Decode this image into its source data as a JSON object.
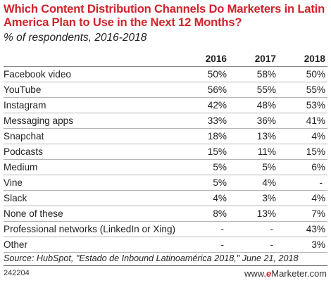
{
  "chart_data": {
    "type": "table",
    "title": "Which Content Distribution Channels Do Marketers in Latin America Plan to Use in the Next 12 Months?",
    "subtitle": "% of respondents, 2016-2018",
    "columns": [
      "2016",
      "2017",
      "2018"
    ],
    "rows": [
      {
        "label": "Facebook video",
        "values": [
          "50%",
          "58%",
          "50%"
        ]
      },
      {
        "label": "YouTube",
        "values": [
          "56%",
          "55%",
          "55%"
        ]
      },
      {
        "label": "Instagram",
        "values": [
          "42%",
          "48%",
          "53%"
        ]
      },
      {
        "label": "Messaging apps",
        "values": [
          "33%",
          "36%",
          "41%"
        ]
      },
      {
        "label": "Snapchat",
        "values": [
          "18%",
          "13%",
          "4%"
        ]
      },
      {
        "label": "Podcasts",
        "values": [
          "15%",
          "11%",
          "15%"
        ]
      },
      {
        "label": "Medium",
        "values": [
          "5%",
          "5%",
          "6%"
        ]
      },
      {
        "label": "Vine",
        "values": [
          "5%",
          "4%",
          "-"
        ]
      },
      {
        "label": "Slack",
        "values": [
          "4%",
          "3%",
          "4%"
        ]
      },
      {
        "label": "None of these",
        "values": [
          "8%",
          "13%",
          "7%"
        ]
      },
      {
        "label": "Professional networks (LinkedIn or Xing)",
        "values": [
          "-",
          "-",
          "43%"
        ]
      },
      {
        "label": "Other",
        "values": [
          "-",
          "-",
          "3%"
        ]
      }
    ],
    "source": "Source: HubSpot, \"Estado de Inbound Latinoamérica 2018,\" June 21, 2018",
    "chart_id": "242204",
    "brand": {
      "prefix": "www.",
      "e": "e",
      "name": "Marketer",
      "suffix": ".com"
    },
    "colors": {
      "title": "#d0242c",
      "text": "#222222",
      "rule": "#b5b5b5"
    }
  }
}
